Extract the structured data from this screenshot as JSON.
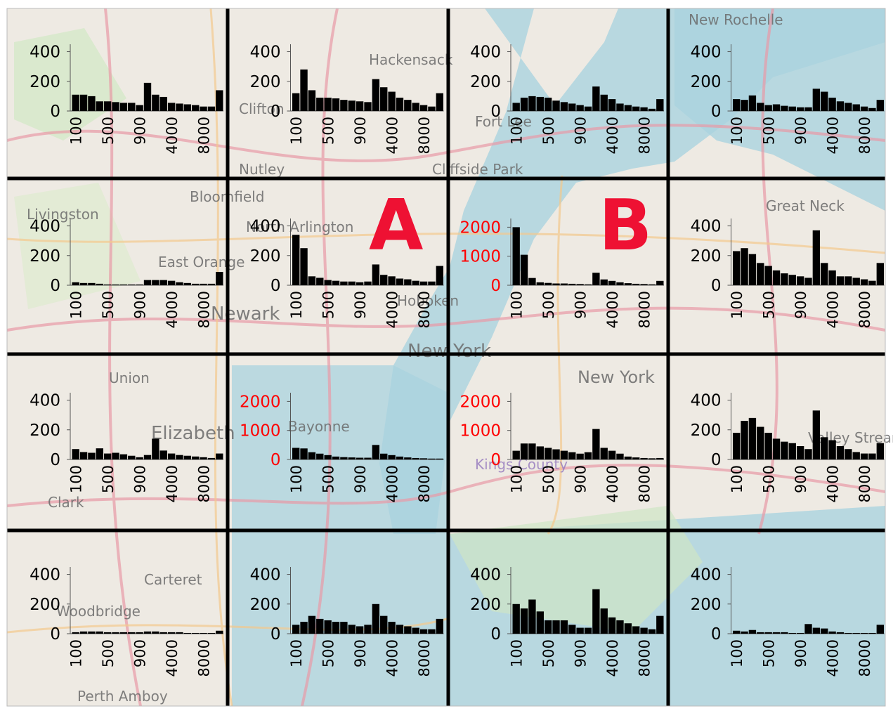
{
  "chart_data": [
    {
      "type": "bar",
      "categories": [
        "100",
        null,
        null,
        null,
        "500",
        null,
        null,
        null,
        "900",
        null,
        null,
        null,
        "4000",
        null,
        null,
        null,
        "8000",
        null,
        null
      ],
      "values": [
        110,
        110,
        100,
        65,
        65,
        60,
        55,
        55,
        40,
        190,
        110,
        95,
        55,
        50,
        45,
        40,
        30,
        30,
        140
      ],
      "color": "#000000",
      "ylim": [
        0,
        450
      ],
      "yticks": [
        0,
        200,
        400
      ],
      "tick_color": "#000000"
    },
    {
      "type": "bar",
      "categories": [
        "100",
        null,
        null,
        null,
        "500",
        null,
        null,
        null,
        "900",
        null,
        null,
        null,
        "4000",
        null,
        null,
        null,
        "8000",
        null,
        null
      ],
      "values": [
        120,
        280,
        140,
        90,
        90,
        85,
        75,
        70,
        65,
        60,
        215,
        160,
        130,
        90,
        75,
        55,
        40,
        30,
        120
      ],
      "color": "#000000",
      "ylim": [
        0,
        450
      ],
      "yticks": [
        0,
        200,
        400
      ],
      "tick_color": "#000000"
    },
    {
      "type": "bar",
      "categories": [
        "100",
        null,
        null,
        null,
        "500",
        null,
        null,
        null,
        "900",
        null,
        null,
        null,
        "4000",
        null,
        null,
        null,
        "8000",
        null,
        null
      ],
      "values": [
        55,
        90,
        100,
        95,
        90,
        70,
        60,
        50,
        40,
        30,
        165,
        110,
        80,
        50,
        40,
        30,
        25,
        15,
        80
      ],
      "color": "#000000",
      "ylim": [
        0,
        450
      ],
      "yticks": [
        0,
        200,
        400
      ],
      "tick_color": "#000000"
    },
    {
      "type": "bar",
      "categories": [
        "100",
        null,
        null,
        null,
        "500",
        null,
        null,
        null,
        "900",
        null,
        null,
        null,
        "4000",
        null,
        null,
        null,
        "8000",
        null,
        null
      ],
      "values": [
        80,
        75,
        105,
        55,
        40,
        45,
        35,
        30,
        25,
        25,
        150,
        130,
        90,
        65,
        55,
        45,
        30,
        20,
        75
      ],
      "color": "#000000",
      "ylim": [
        0,
        450
      ],
      "yticks": [
        0,
        200,
        400
      ],
      "tick_color": "#000000"
    },
    {
      "type": "bar",
      "categories": [
        "100",
        null,
        null,
        null,
        "500",
        null,
        null,
        null,
        "900",
        null,
        null,
        null,
        "4000",
        null,
        null,
        null,
        "8000",
        null,
        null
      ],
      "values": [
        20,
        15,
        15,
        10,
        5,
        5,
        5,
        5,
        5,
        35,
        35,
        35,
        30,
        20,
        15,
        10,
        10,
        10,
        90
      ],
      "color": "#000000",
      "ylim": [
        0,
        450
      ],
      "yticks": [
        0,
        200,
        400
      ],
      "tick_color": "#000000"
    },
    {
      "type": "bar",
      "categories": [
        "100",
        null,
        null,
        null,
        "500",
        null,
        null,
        null,
        "900",
        null,
        null,
        null,
        "4000",
        null,
        null,
        null,
        "8000",
        null,
        null
      ],
      "values": [
        340,
        250,
        60,
        50,
        35,
        30,
        25,
        25,
        20,
        25,
        140,
        70,
        60,
        45,
        40,
        30,
        25,
        25,
        130
      ],
      "color": "#000000",
      "ylim": [
        0,
        450
      ],
      "yticks": [
        0,
        200,
        400
      ],
      "tick_color": "#000000"
    },
    {
      "type": "bar",
      "categories": [
        "100",
        null,
        null,
        null,
        "500",
        null,
        null,
        null,
        "900",
        null,
        null,
        null,
        "4000",
        null,
        null,
        null,
        "8000",
        null,
        null
      ],
      "values": [
        2000,
        1050,
        250,
        100,
        80,
        60,
        60,
        50,
        40,
        30,
        430,
        200,
        150,
        100,
        70,
        50,
        40,
        30,
        150
      ],
      "color": "#000000",
      "ylim": [
        0,
        2300
      ],
      "yticks": [
        0,
        1000,
        2000
      ],
      "tick_color": "#ff0000"
    },
    {
      "type": "bar",
      "categories": [
        "100",
        null,
        null,
        null,
        "500",
        null,
        null,
        null,
        "900",
        null,
        null,
        null,
        "4000",
        null,
        null,
        null,
        "8000",
        null,
        null
      ],
      "values": [
        230,
        250,
        210,
        150,
        130,
        100,
        80,
        70,
        60,
        50,
        370,
        150,
        100,
        60,
        60,
        50,
        40,
        30,
        150
      ],
      "color": "#000000",
      "ylim": [
        0,
        450
      ],
      "yticks": [
        0,
        200,
        400
      ],
      "tick_color": "#000000"
    },
    {
      "type": "bar",
      "categories": [
        "100",
        null,
        null,
        null,
        "500",
        null,
        null,
        null,
        "900",
        null,
        null,
        null,
        "4000",
        null,
        null,
        null,
        "8000",
        null,
        null
      ],
      "values": [
        70,
        50,
        45,
        75,
        40,
        45,
        35,
        25,
        15,
        30,
        140,
        60,
        40,
        30,
        25,
        20,
        15,
        10,
        40
      ],
      "color": "#000000",
      "ylim": [
        0,
        450
      ],
      "yticks": [
        0,
        200,
        400
      ],
      "tick_color": "#000000"
    },
    {
      "type": "bar",
      "categories": [
        "100",
        null,
        null,
        null,
        "500",
        null,
        null,
        null,
        "900",
        null,
        null,
        null,
        "4000",
        null,
        null,
        null,
        "8000",
        null,
        null
      ],
      "values": [
        400,
        380,
        250,
        200,
        150,
        100,
        80,
        70,
        60,
        60,
        500,
        200,
        150,
        100,
        70,
        50,
        40,
        30,
        30
      ],
      "color": "#000000",
      "ylim": [
        0,
        2300
      ],
      "yticks": [
        0,
        1000,
        2000
      ],
      "tick_color": "#ff0000"
    },
    {
      "type": "bar",
      "categories": [
        "100",
        null,
        null,
        null,
        "500",
        null,
        null,
        null,
        "900",
        null,
        null,
        null,
        "4000",
        null,
        null,
        null,
        "8000",
        null,
        null
      ],
      "values": [
        300,
        550,
        550,
        450,
        400,
        350,
        300,
        250,
        200,
        250,
        1050,
        400,
        300,
        200,
        100,
        70,
        50,
        40,
        50
      ],
      "color": "#000000",
      "ylim": [
        0,
        2300
      ],
      "yticks": [
        0,
        1000,
        2000
      ],
      "tick_color": "#ff0000"
    },
    {
      "type": "bar",
      "categories": [
        "100",
        null,
        null,
        null,
        "500",
        null,
        null,
        null,
        "900",
        null,
        null,
        null,
        "4000",
        null,
        null,
        null,
        "8000",
        null,
        null
      ],
      "values": [
        180,
        260,
        280,
        220,
        180,
        140,
        120,
        110,
        90,
        70,
        330,
        150,
        130,
        90,
        70,
        50,
        40,
        40,
        110
      ],
      "color": "#000000",
      "ylim": [
        0,
        450
      ],
      "yticks": [
        0,
        200,
        400
      ],
      "tick_color": "#000000"
    },
    {
      "type": "bar",
      "categories": [
        "100",
        null,
        null,
        null,
        "500",
        null,
        null,
        null,
        "900",
        null,
        null,
        null,
        "4000",
        null,
        null,
        null,
        "8000",
        null,
        null
      ],
      "values": [
        10,
        15,
        15,
        15,
        10,
        10,
        10,
        10,
        10,
        15,
        15,
        10,
        10,
        10,
        5,
        5,
        5,
        5,
        20
      ],
      "color": "#000000",
      "ylim": [
        0,
        450
      ],
      "yticks": [
        0,
        200,
        400
      ],
      "tick_color": "#000000"
    },
    {
      "type": "bar",
      "categories": [
        "100",
        null,
        null,
        null,
        "500",
        null,
        null,
        null,
        "900",
        null,
        null,
        null,
        "4000",
        null,
        null,
        null,
        "8000",
        null,
        null
      ],
      "values": [
        60,
        80,
        120,
        100,
        90,
        80,
        80,
        60,
        50,
        60,
        200,
        120,
        80,
        60,
        50,
        40,
        30,
        30,
        100
      ],
      "color": "#000000",
      "ylim": [
        0,
        450
      ],
      "yticks": [
        0,
        200,
        400
      ],
      "tick_color": "#000000"
    },
    {
      "type": "bar",
      "categories": [
        "100",
        null,
        null,
        null,
        "500",
        null,
        null,
        null,
        "900",
        null,
        null,
        null,
        "4000",
        null,
        null,
        null,
        "8000",
        null,
        null
      ],
      "values": [
        200,
        170,
        230,
        150,
        90,
        90,
        90,
        60,
        40,
        40,
        300,
        170,
        110,
        90,
        70,
        50,
        40,
        30,
        120
      ],
      "color": "#000000",
      "ylim": [
        0,
        450
      ],
      "yticks": [
        0,
        200,
        400
      ],
      "tick_color": "#000000"
    },
    {
      "type": "bar",
      "categories": [
        "100",
        null,
        null,
        null,
        "500",
        null,
        null,
        null,
        "900",
        null,
        null,
        null,
        "4000",
        null,
        null,
        null,
        "8000",
        null,
        null
      ],
      "values": [
        20,
        15,
        25,
        10,
        10,
        10,
        10,
        5,
        5,
        65,
        40,
        35,
        15,
        10,
        5,
        5,
        5,
        5,
        60
      ],
      "color": "#000000",
      "ylim": [
        0,
        450
      ],
      "yticks": [
        0,
        200,
        400
      ],
      "tick_color": "#000000"
    }
  ],
  "annotations": [
    "A",
    "B"
  ],
  "map_labels": [
    "New Rochelle",
    "Hackensack",
    "Clifton",
    "Fort Lee",
    "Nutley",
    "Cliffside Park",
    "Bloomfield",
    "Livingston",
    "North Arlington",
    "Great Neck",
    "East Orange",
    "Newark",
    "Hoboken",
    "New York",
    "Union",
    "New York",
    "Elizabeth",
    "Bayonne",
    "Kings County",
    "Valley Stream",
    "Clark",
    "Carteret",
    "Woodbridge",
    "Perth Amboy"
  ]
}
